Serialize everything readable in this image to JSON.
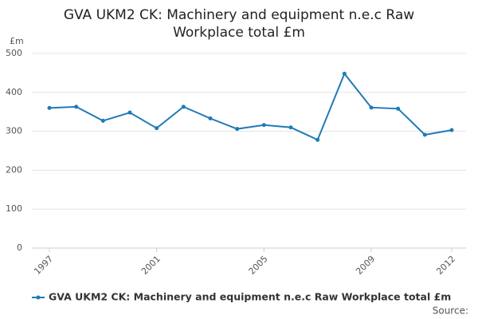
{
  "chart_data": {
    "type": "line",
    "title": "GVA UKM2 CK: Machinery and equipment n.e.c Raw Workplace total £m",
    "y_unit": "£m",
    "source": "Source:",
    "x": [
      1997,
      1998,
      1999,
      2000,
      2001,
      2002,
      2003,
      2004,
      2005,
      2006,
      2007,
      2008,
      2009,
      2010,
      2011,
      2012
    ],
    "series": [
      {
        "name": "GVA UKM2 CK: Machinery and equipment n.e.c Raw Workplace total £m",
        "color": "#1f7bb6",
        "values": [
          360,
          363,
          327,
          348,
          308,
          363,
          333,
          306,
          316,
          310,
          278,
          448,
          361,
          358,
          291,
          303
        ]
      }
    ],
    "xlim": [
      1997,
      2012
    ],
    "xticks": [
      1997,
      2001,
      2005,
      2009,
      2012
    ],
    "ylim": [
      0,
      500
    ],
    "yticks": [
      0,
      100,
      200,
      300,
      400,
      500
    ],
    "grid": true,
    "legend": "bottom"
  }
}
